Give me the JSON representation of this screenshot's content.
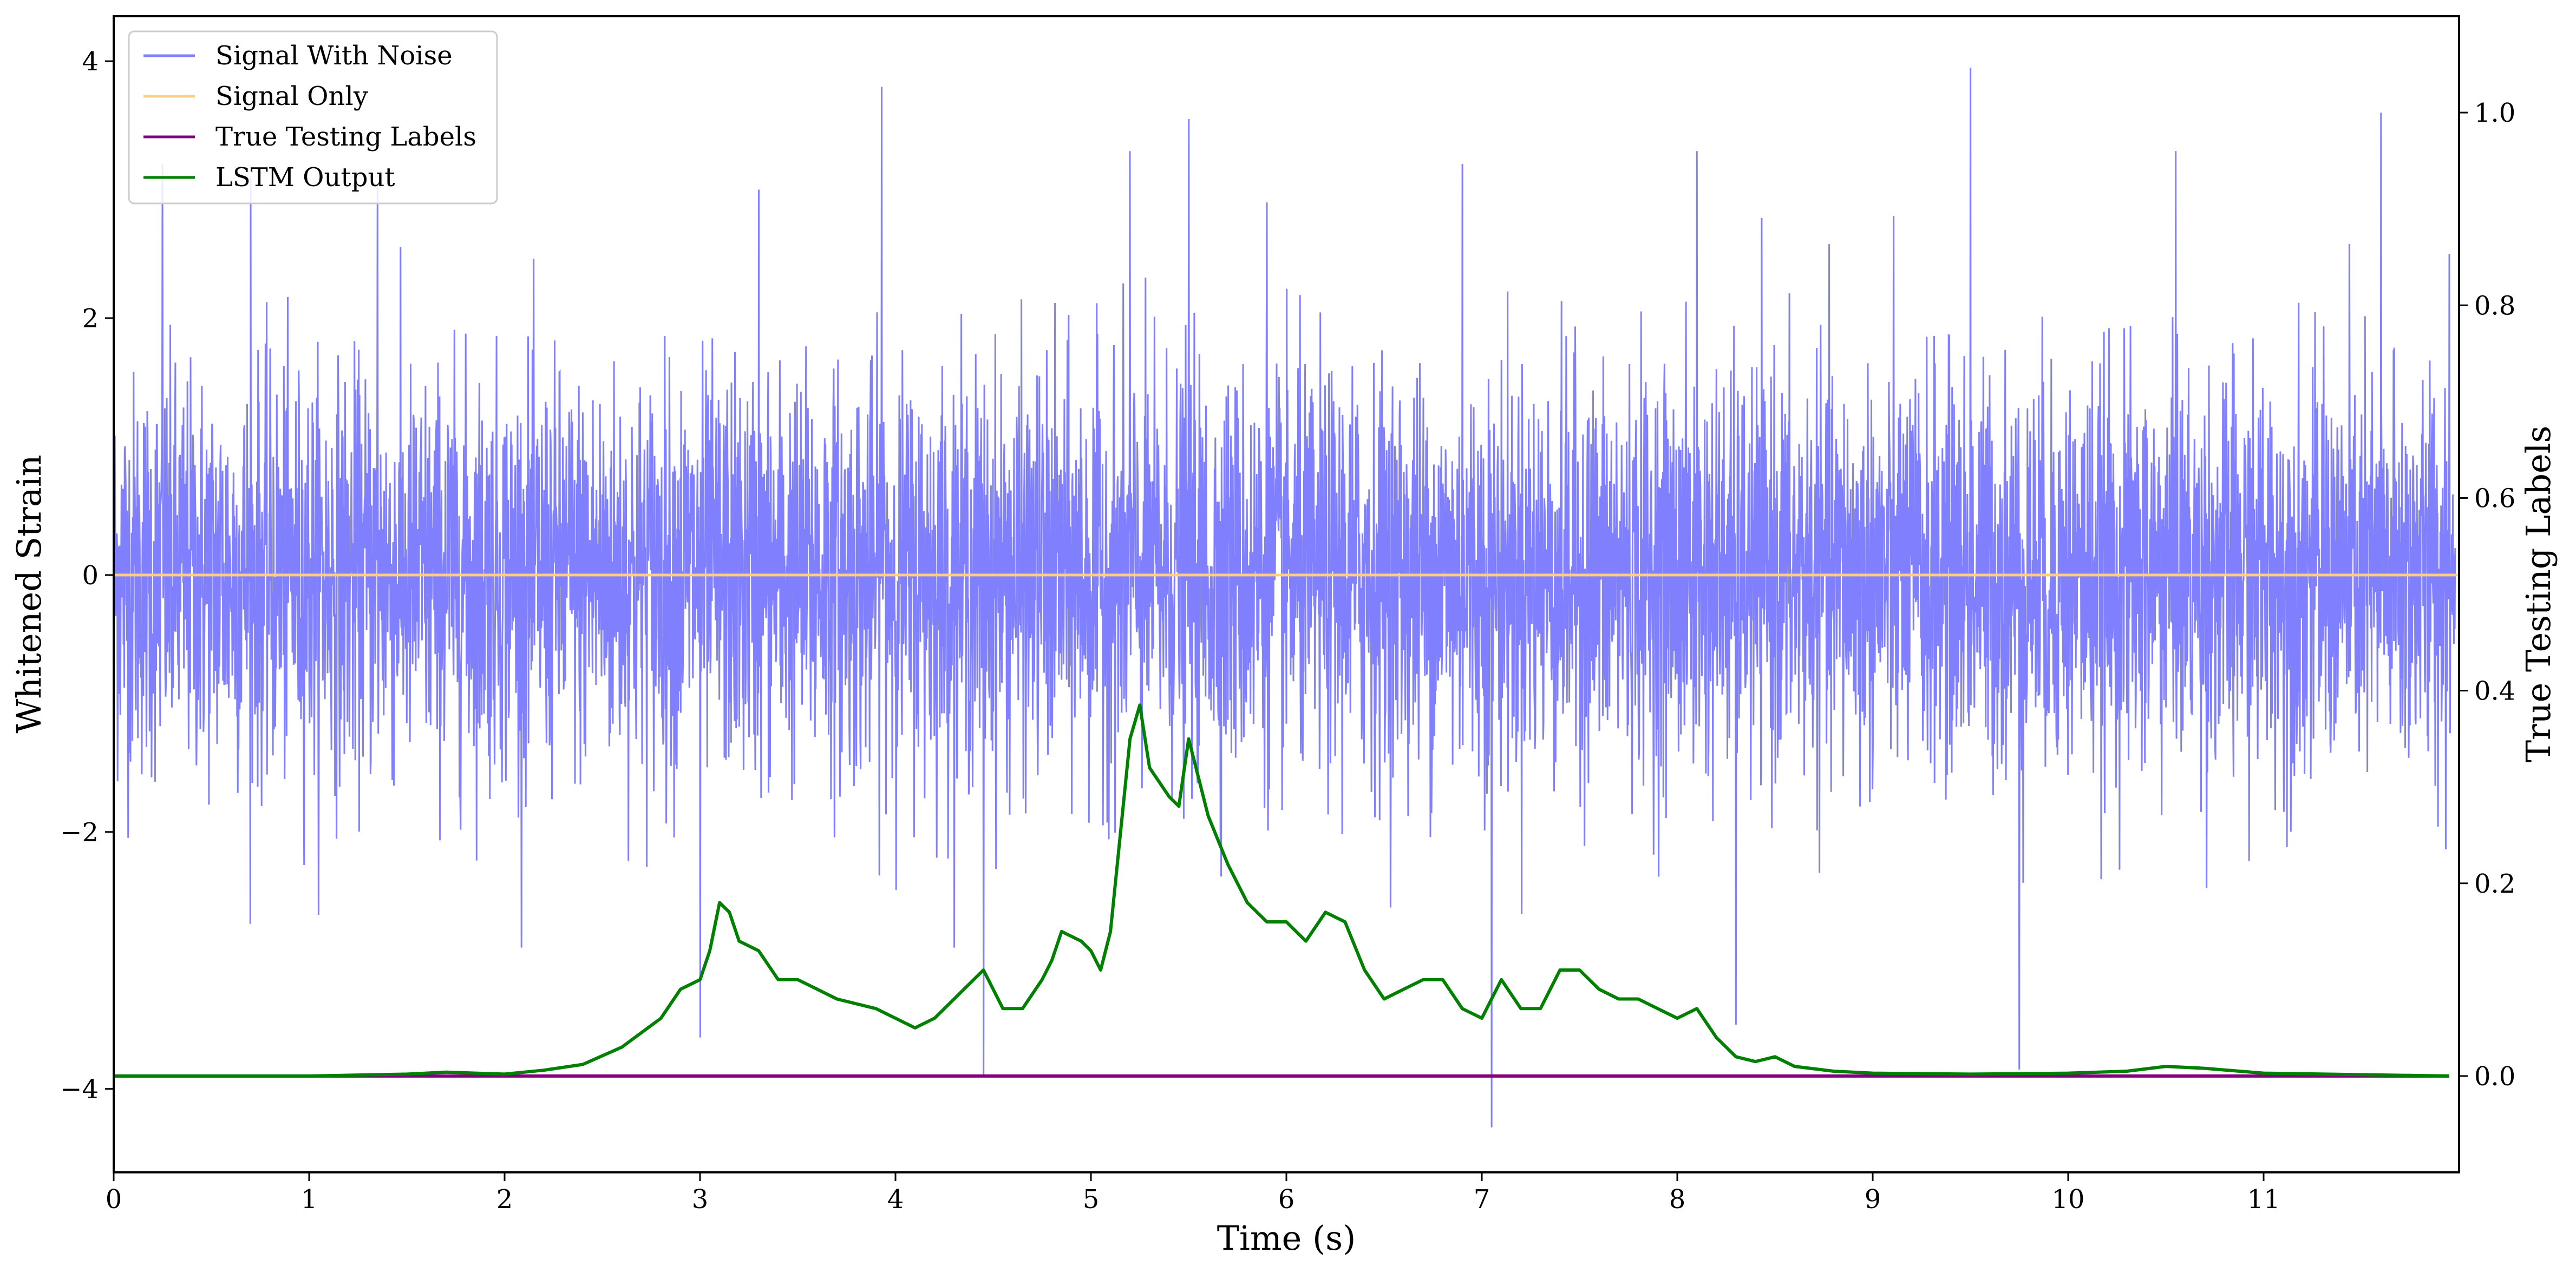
{
  "chart_data": {
    "type": "line",
    "xlabel": "Time (s)",
    "ylabel": "Whitened Strain",
    "y2label": "True Testing Labels",
    "xlim": [
      0,
      12
    ],
    "ylim": [
      -4.65,
      4.35
    ],
    "y2lim": [
      -0.1,
      1.1
    ],
    "x_ticks": [
      0,
      1,
      2,
      3,
      4,
      5,
      6,
      7,
      8,
      9,
      10,
      11
    ],
    "y_ticks": [
      -4,
      -2,
      0,
      2,
      4
    ],
    "y2_ticks": [
      0.0,
      0.2,
      0.4,
      0.6,
      0.8,
      1.0
    ],
    "x_tick_labels": [
      "0",
      "1",
      "2",
      "3",
      "4",
      "5",
      "6",
      "7",
      "8",
      "9",
      "10",
      "11"
    ],
    "y_tick_labels": [
      "−4",
      "−2",
      "0",
      "2",
      "4"
    ],
    "y2_tick_labels": [
      "0.0",
      "0.2",
      "0.4",
      "0.6",
      "0.8",
      "1.0"
    ],
    "legend_position": "top-left",
    "grid": false,
    "series": [
      {
        "name": "Signal With Noise",
        "axis": "left",
        "color": "#8080ff",
        "sample_peaks": [
          [
            0.25,
            3.2
          ],
          [
            0.7,
            3.1
          ],
          [
            1.35,
            3.05
          ],
          [
            3.0,
            -3.6
          ],
          [
            3.3,
            3.0
          ],
          [
            3.93,
            3.8
          ],
          [
            4.45,
            -3.9
          ],
          [
            5.2,
            3.3
          ],
          [
            5.5,
            3.55
          ],
          [
            5.9,
            2.9
          ],
          [
            6.9,
            3.2
          ],
          [
            7.05,
            -4.3
          ],
          [
            8.1,
            3.3
          ],
          [
            8.3,
            -3.5
          ],
          [
            9.5,
            3.95
          ],
          [
            9.75,
            -3.85
          ],
          [
            10.55,
            3.3
          ],
          [
            11.6,
            3.6
          ],
          [
            11.95,
            2.5
          ]
        ]
      },
      {
        "name": "Signal Only",
        "axis": "left",
        "color": "#ffcf80",
        "x": [
          0,
          12
        ],
        "y": [
          0,
          0
        ]
      },
      {
        "name": "True Testing Labels",
        "axis": "right",
        "color": "#800080",
        "x": [
          0,
          11.95
        ],
        "y": [
          0,
          0
        ]
      },
      {
        "name": "LSTM Output",
        "axis": "right",
        "color": "#008000",
        "x": [
          0,
          1,
          1.5,
          1.7,
          2.0,
          2.2,
          2.4,
          2.6,
          2.8,
          2.9,
          3.0,
          3.05,
          3.1,
          3.15,
          3.2,
          3.3,
          3.4,
          3.5,
          3.6,
          3.7,
          3.9,
          4.0,
          4.1,
          4.2,
          4.3,
          4.35,
          4.45,
          4.55,
          4.65,
          4.75,
          4.8,
          4.85,
          4.9,
          4.95,
          5.0,
          5.05,
          5.1,
          5.2,
          5.25,
          5.3,
          5.4,
          5.45,
          5.5,
          5.6,
          5.7,
          5.8,
          5.9,
          6.0,
          6.1,
          6.2,
          6.3,
          6.4,
          6.5,
          6.6,
          6.7,
          6.8,
          6.9,
          7.0,
          7.1,
          7.2,
          7.3,
          7.4,
          7.5,
          7.6,
          7.7,
          7.8,
          7.9,
          8.0,
          8.1,
          8.2,
          8.3,
          8.4,
          8.5,
          8.6,
          8.8,
          9.0,
          9.5,
          10.0,
          10.3,
          10.5,
          10.7,
          11.0,
          11.95
        ],
        "y": [
          0.0,
          0.0,
          0.002,
          0.004,
          0.002,
          0.006,
          0.012,
          0.03,
          0.06,
          0.09,
          0.1,
          0.13,
          0.18,
          0.17,
          0.14,
          0.13,
          0.1,
          0.1,
          0.09,
          0.08,
          0.07,
          0.06,
          0.05,
          0.06,
          0.08,
          0.09,
          0.11,
          0.07,
          0.07,
          0.1,
          0.12,
          0.15,
          0.145,
          0.14,
          0.13,
          0.11,
          0.15,
          0.35,
          0.385,
          0.32,
          0.29,
          0.28,
          0.35,
          0.27,
          0.22,
          0.18,
          0.16,
          0.16,
          0.14,
          0.17,
          0.16,
          0.11,
          0.08,
          0.09,
          0.1,
          0.1,
          0.07,
          0.06,
          0.1,
          0.07,
          0.07,
          0.11,
          0.11,
          0.09,
          0.08,
          0.08,
          0.07,
          0.06,
          0.07,
          0.04,
          0.02,
          0.015,
          0.02,
          0.01,
          0.005,
          0.003,
          0.002,
          0.003,
          0.005,
          0.01,
          0.008,
          0.003,
          0.0
        ]
      }
    ]
  }
}
